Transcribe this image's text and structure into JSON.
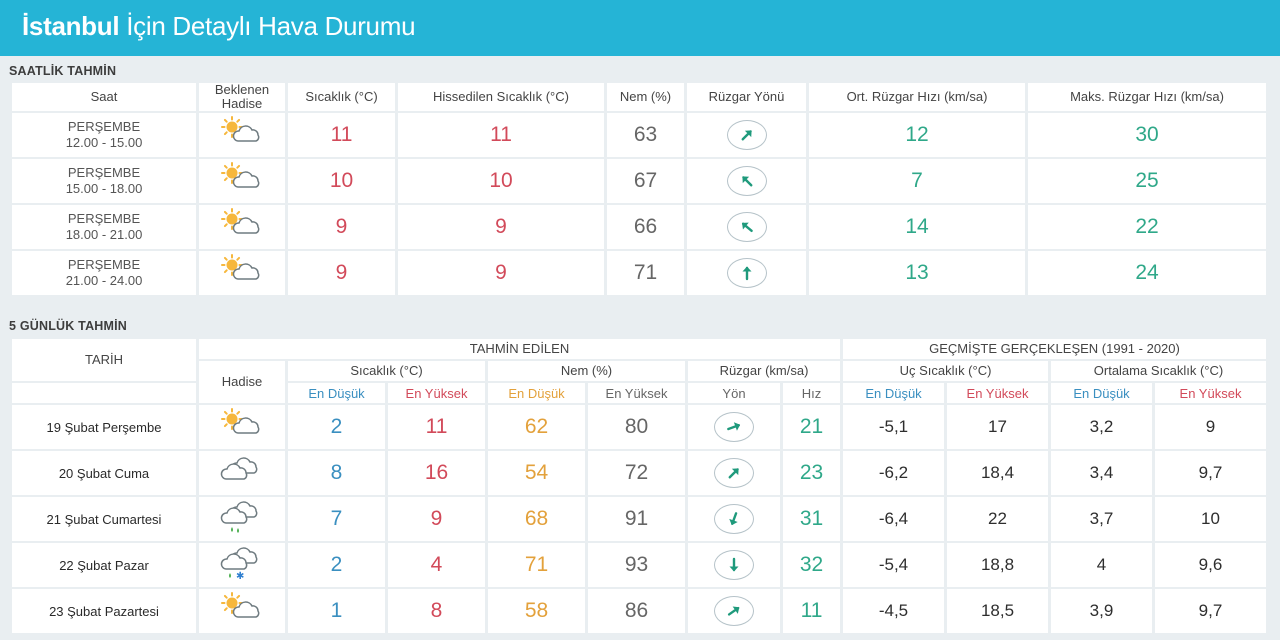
{
  "header": {
    "city": "İstanbul",
    "rest": "İçin Detaylı Hava Durumu"
  },
  "hourly": {
    "title": "SAATLİK TAHMİN",
    "headers": {
      "saat": "Saat",
      "hadise_1": "Beklenen",
      "hadise_2": "Hadise",
      "sicaklik": "Sıcaklık (°C)",
      "hissedilen": "Hissedilen Sıcaklık (°C)",
      "nem": "Nem (%)",
      "ruzgar_yonu": "Rüzgar Yönü",
      "ort_hiz": "Ort. Rüzgar Hızı (km/sa)",
      "maks_hiz": "Maks. Rüzgar Hızı (km/sa)"
    },
    "rows": [
      {
        "day": "PERŞEMBE",
        "time": "12.00 - 15.00",
        "icon": "partly-cloudy-icon",
        "temp": "11",
        "feels": "11",
        "humidity": "63",
        "wind_dir_deg": 45,
        "wind_avg": "12",
        "wind_max": "30"
      },
      {
        "day": "PERŞEMBE",
        "time": "15.00 - 18.00",
        "icon": "partly-cloudy-icon",
        "temp": "10",
        "feels": "10",
        "humidity": "67",
        "wind_dir_deg": -45,
        "wind_avg": "7",
        "wind_max": "25"
      },
      {
        "day": "PERŞEMBE",
        "time": "18.00 - 21.00",
        "icon": "partly-cloudy-icon",
        "temp": "9",
        "feels": "9",
        "humidity": "66",
        "wind_dir_deg": -50,
        "wind_avg": "14",
        "wind_max": "22"
      },
      {
        "day": "PERŞEMBE",
        "time": "21.00 - 24.00",
        "icon": "partly-cloudy-icon",
        "temp": "9",
        "feels": "9",
        "humidity": "71",
        "wind_dir_deg": 0,
        "wind_avg": "13",
        "wind_max": "24"
      }
    ]
  },
  "daily": {
    "title": "5 GÜNLÜK TAHMİN",
    "headers": {
      "tarih": "TARİH",
      "tahmin_edilen": "TAHMİN EDİLEN",
      "gecmiste": "GEÇMİŞTE GERÇEKLEŞEN (1991 - 2020)",
      "hadise": "Hadise",
      "sicaklik": "Sıcaklık (°C)",
      "nem": "Nem (%)",
      "ruzgar": "Rüzgar (km/sa)",
      "uc_sicaklik": "Uç Sıcaklık (°C)",
      "ortalama_sicaklik": "Ortalama Sıcaklık (°C)",
      "en_dusuk": "En Düşük",
      "en_yuksek": "En Yüksek",
      "yon": "Yön",
      "hiz": "Hız"
    },
    "rows": [
      {
        "date": "19 Şubat Perşembe",
        "icon": "partly-cloudy-icon",
        "t_min": "2",
        "t_max": "11",
        "h_min": "62",
        "h_max": "80",
        "wind_dir_deg": 70,
        "wind_speed": "21",
        "ext_min": "-5,1",
        "ext_max": "17",
        "avg_min": "3,2",
        "avg_max": "9"
      },
      {
        "date": "20 Şubat Cuma",
        "icon": "cloudy-icon",
        "t_min": "8",
        "t_max": "16",
        "h_min": "54",
        "h_max": "72",
        "wind_dir_deg": 45,
        "wind_speed": "23",
        "ext_min": "-6,2",
        "ext_max": "18,4",
        "avg_min": "3,4",
        "avg_max": "9,7"
      },
      {
        "date": "21 Şubat Cumartesi",
        "icon": "rain-icon",
        "t_min": "7",
        "t_max": "9",
        "h_min": "68",
        "h_max": "91",
        "wind_dir_deg": 200,
        "wind_speed": "31",
        "ext_min": "-6,4",
        "ext_max": "22",
        "avg_min": "3,7",
        "avg_max": "10"
      },
      {
        "date": "22 Şubat Pazar",
        "icon": "sleet-icon",
        "t_min": "2",
        "t_max": "4",
        "h_min": "71",
        "h_max": "93",
        "wind_dir_deg": 180,
        "wind_speed": "32",
        "ext_min": "-5,4",
        "ext_max": "18,8",
        "avg_min": "4",
        "avg_max": "9,6"
      },
      {
        "date": "23 Şubat Pazartesi",
        "icon": "partly-cloudy-icon",
        "t_min": "1",
        "t_max": "8",
        "h_min": "58",
        "h_max": "86",
        "wind_dir_deg": 55,
        "wind_speed": "11",
        "ext_min": "-4,5",
        "ext_max": "18,5",
        "avg_min": "3,9",
        "avg_max": "9,7"
      }
    ]
  },
  "colors": {
    "header": "#25b4d6",
    "blue": "#3a8fc0",
    "red": "#d24a5a",
    "orange": "#e3a13b",
    "teal": "#2fa889"
  }
}
